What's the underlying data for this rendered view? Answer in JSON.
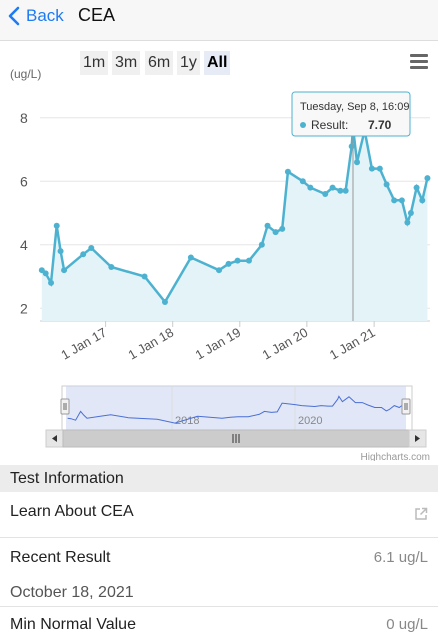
{
  "nav": {
    "back_label": "Back",
    "title": "CEA"
  },
  "range_buttons": [
    "1m",
    "3m",
    "6m",
    "1y",
    "All"
  ],
  "selected_range": "All",
  "chart_data": {
    "type": "line",
    "ylabel": "(ug/L)",
    "yticks": [
      "2",
      "4",
      "6",
      "8"
    ],
    "ylim": [
      1.6,
      9.0
    ],
    "xticks": [
      "1 Jan 17",
      "1 Jan 18",
      "1 Jan 19",
      "1 Jan 20",
      "1 Jan 21"
    ],
    "x_range": [
      "2016-01-10",
      "2021-11-01"
    ],
    "series": [
      {
        "points": [
          [
            "2016-01-20",
            3.2
          ],
          [
            "2016-02-10",
            3.1
          ],
          [
            "2016-03-10",
            2.8
          ],
          [
            "2016-04-10",
            4.6
          ],
          [
            "2016-05-01",
            3.8
          ],
          [
            "2016-05-20",
            3.2
          ],
          [
            "2016-09-01",
            3.7
          ],
          [
            "2016-10-15",
            3.9
          ],
          [
            "2017-02-01",
            3.3
          ],
          [
            "2017-08-01",
            3.0
          ],
          [
            "2017-11-20",
            2.2
          ],
          [
            "2018-04-10",
            3.6
          ],
          [
            "2018-09-10",
            3.2
          ],
          [
            "2018-11-01",
            3.4
          ],
          [
            "2018-12-20",
            3.5
          ],
          [
            "2019-02-20",
            3.5
          ],
          [
            "2019-05-01",
            4.0
          ],
          [
            "2019-06-01",
            4.6
          ],
          [
            "2019-07-15",
            4.4
          ],
          [
            "2019-08-20",
            4.5
          ],
          [
            "2019-09-20",
            6.3
          ],
          [
            "2019-12-10",
            6.0
          ],
          [
            "2020-01-20",
            5.8
          ],
          [
            "2020-04-10",
            5.6
          ],
          [
            "2020-05-20",
            5.8
          ],
          [
            "2020-07-01",
            5.7
          ],
          [
            "2020-07-30",
            5.7
          ],
          [
            "2020-09-01",
            7.1
          ],
          [
            "2020-09-08",
            7.7
          ],
          [
            "2020-09-30",
            6.6
          ],
          [
            "2020-11-10",
            7.6
          ],
          [
            "2020-12-20",
            6.4
          ],
          [
            "2021-02-01",
            6.4
          ],
          [
            "2021-03-10",
            5.9
          ],
          [
            "2021-04-20",
            5.4
          ],
          [
            "2021-06-01",
            5.4
          ],
          [
            "2021-07-01",
            4.7
          ],
          [
            "2021-07-20",
            5.0
          ],
          [
            "2021-08-20",
            5.8
          ],
          [
            "2021-09-20",
            5.4
          ],
          [
            "2021-10-18",
            6.1
          ]
        ]
      }
    ],
    "tooltip": {
      "date": "Tuesday, Sep 8, 16:09",
      "label": "Result:",
      "value": "7.70",
      "x": "2020-09-08",
      "y": 7.7
    },
    "navigator": {
      "year_labels": [
        "2018",
        "2020"
      ]
    },
    "credits": "Highcharts.com",
    "colors": {
      "line": "#4db2d0",
      "fill": "#e4f3f8",
      "navigator_mask": "#c9d3ee",
      "navigator_line": "#4a6fd6"
    }
  },
  "sections": {
    "test_info": "Test Information"
  },
  "rows": {
    "learn": "Learn About CEA",
    "recent_label": "Recent Result",
    "recent_value": "6.1 ug/L",
    "recent_date": "October 18, 2021",
    "min_label": "Min Normal Value",
    "min_value": "0 ug/L"
  }
}
